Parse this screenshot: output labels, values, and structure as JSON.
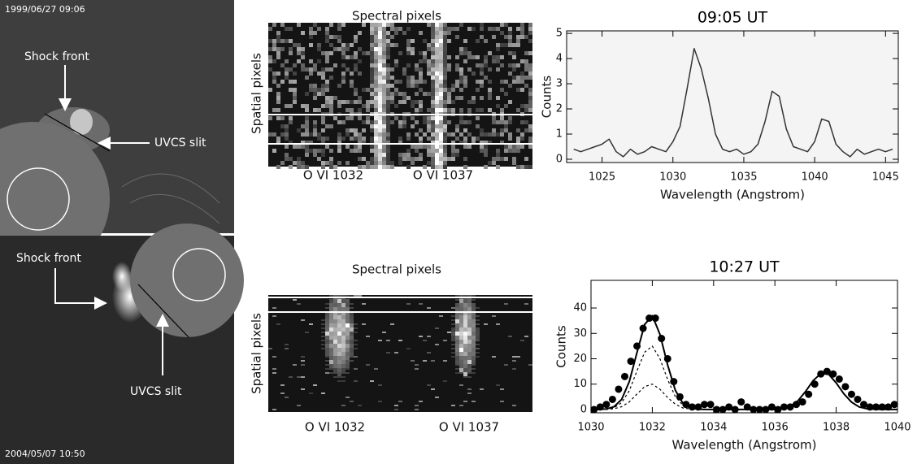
{
  "images": [
    {
      "timestamp": "1999/06/27  09:06",
      "shock_label": "Shock front",
      "slit_label": "UVCS slit"
    },
    {
      "timestamp": "2004/05/07  10:50",
      "shock_label": "Shock front",
      "slit_label": "UVCS slit"
    }
  ],
  "spectrograms": [
    {
      "title": "Spectral pixels",
      "ylabel": "Spatial pixels",
      "line_labels": [
        "O VI  1032",
        "O VI  1037"
      ]
    },
    {
      "title": "Spectral pixels",
      "ylabel": "Spatial pixels",
      "line_labels": [
        "O VI  1032",
        "O VI  1037"
      ]
    }
  ],
  "chart_data": [
    {
      "type": "line",
      "title": "09:05 UT",
      "xlabel": "Wavelength (Angstrom)",
      "ylabel": "Counts",
      "xlim": [
        1022.5,
        1045.9
      ],
      "xticks": [
        1025,
        1030,
        1035,
        1040,
        1045
      ],
      "ylim": [
        -0.13,
        5.1
      ],
      "yticks": [
        0,
        1,
        2,
        3,
        4,
        5
      ],
      "series": [
        {
          "color": "#333333",
          "style": "solid",
          "x": [
            1023,
            1023.5,
            1024,
            1024.5,
            1025,
            1025.5,
            1026,
            1026.5,
            1027,
            1027.5,
            1028,
            1028.5,
            1029,
            1029.5,
            1030,
            1030.5,
            1031,
            1031.5,
            1032,
            1032.5,
            1033,
            1033.5,
            1034,
            1034.5,
            1035,
            1035.5,
            1036,
            1036.5,
            1037,
            1037.5,
            1038,
            1038.5,
            1039,
            1039.5,
            1040,
            1040.5,
            1041,
            1041.5,
            1042,
            1042.5,
            1043,
            1043.5,
            1044,
            1044.5,
            1045,
            1045.5
          ],
          "values": [
            0.4,
            0.3,
            0.4,
            0.5,
            0.6,
            0.8,
            0.3,
            0.1,
            0.4,
            0.2,
            0.3,
            0.5,
            0.4,
            0.3,
            0.7,
            1.3,
            2.8,
            4.4,
            3.6,
            2.4,
            1.0,
            0.4,
            0.3,
            0.4,
            0.2,
            0.3,
            0.6,
            1.5,
            2.7,
            2.5,
            1.2,
            0.5,
            0.4,
            0.3,
            0.7,
            1.6,
            1.5,
            0.6,
            0.3,
            0.1,
            0.4,
            0.2,
            0.3,
            0.4,
            0.3,
            0.4
          ]
        }
      ]
    },
    {
      "type": "line",
      "title": "10:27 UT",
      "xlabel": "Wavelength (Angstrom)",
      "ylabel": "Counts",
      "xlim": [
        1030,
        1040
      ],
      "xticks": [
        1030,
        1032,
        1034,
        1036,
        1038,
        1040
      ],
      "ylim": [
        -1.3,
        50.9
      ],
      "yticks": [
        0,
        10,
        20,
        30,
        40
      ],
      "series": [
        {
          "color": "#000000",
          "style": "markers",
          "x": [
            1030.1,
            1030.3,
            1030.5,
            1030.7,
            1030.9,
            1031.1,
            1031.3,
            1031.5,
            1031.7,
            1031.9,
            1032.1,
            1032.3,
            1032.5,
            1032.7,
            1032.9,
            1033.1,
            1033.3,
            1033.5,
            1033.7,
            1033.9,
            1034.1,
            1034.3,
            1034.5,
            1034.7,
            1034.9,
            1035.1,
            1035.3,
            1035.5,
            1035.7,
            1035.9,
            1036.1,
            1036.3,
            1036.5,
            1036.7,
            1036.9,
            1037.1,
            1037.3,
            1037.5,
            1037.7,
            1037.9,
            1038.1,
            1038.3,
            1038.5,
            1038.7,
            1038.9,
            1039.1,
            1039.3,
            1039.5,
            1039.7,
            1039.9
          ],
          "values": [
            0,
            1,
            2,
            4,
            8,
            13,
            19,
            25,
            32,
            36,
            36,
            28,
            20,
            11,
            5,
            2,
            1,
            1,
            2,
            2,
            0,
            0,
            1,
            0,
            3,
            1,
            0,
            0,
            0,
            1,
            0,
            1,
            1,
            2,
            3,
            6,
            10,
            14,
            15,
            14,
            12,
            9,
            6,
            4,
            2,
            1,
            1,
            1,
            1,
            2
          ]
        },
        {
          "color": "#000000",
          "style": "solid",
          "x": [
            1030,
            1030.25,
            1030.5,
            1030.75,
            1031,
            1031.25,
            1031.5,
            1031.75,
            1032,
            1032.25,
            1032.5,
            1032.75,
            1033,
            1033.25,
            1033.5,
            1033.75,
            1034,
            1034.5,
            1035,
            1035.5,
            1036,
            1036.25,
            1036.5,
            1036.75,
            1037,
            1037.25,
            1037.5,
            1037.75,
            1038,
            1038.25,
            1038.5,
            1038.75,
            1039,
            1039.25,
            1039.5,
            1040
          ],
          "values": [
            0,
            0,
            0.2,
            1.1,
            4.0,
            11.0,
            22.4,
            33.5,
            37,
            29.6,
            17.5,
            7.6,
            2.4,
            0.6,
            0.1,
            0,
            0,
            0,
            0,
            0,
            0,
            0.4,
            1.3,
            3.4,
            7.1,
            11.4,
            14.2,
            13.9,
            10.5,
            6.2,
            2.9,
            1.0,
            0.3,
            0.1,
            0,
            0
          ]
        },
        {
          "color": "#000000",
          "style": "dashed",
          "x": [
            1030,
            1030.5,
            1030.75,
            1031,
            1031.25,
            1031.5,
            1031.75,
            1032,
            1032.25,
            1032.5,
            1032.75,
            1033,
            1033.25,
            1033.5,
            1034
          ],
          "values": [
            0,
            0.1,
            0.7,
            2.7,
            7.4,
            15.2,
            22.6,
            25,
            20,
            11.8,
            5.1,
            1.6,
            0.4,
            0.1,
            0
          ]
        },
        {
          "color": "#000000",
          "style": "dashed",
          "x": [
            1030,
            1030.5,
            1030.75,
            1031,
            1031.25,
            1031.5,
            1031.75,
            1032,
            1032.25,
            1032.5,
            1032.75,
            1033,
            1033.25,
            1033.5,
            1034
          ],
          "values": [
            0,
            0,
            0.3,
            1.1,
            3.0,
            6.1,
            9.0,
            10,
            8.0,
            4.7,
            2.1,
            0.6,
            0.2,
            0,
            0
          ]
        }
      ]
    }
  ]
}
